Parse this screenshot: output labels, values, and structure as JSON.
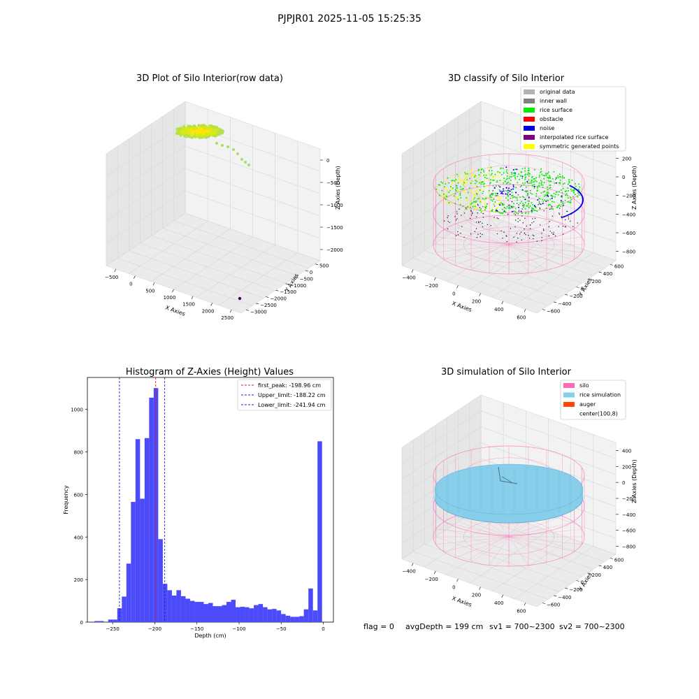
{
  "figure": {
    "title": "PJPJR01 2025-11-05 15:25:35",
    "footer": {
      "flag": "flag = 0",
      "avg_depth": "avgDepth = 199 cm",
      "sv1": "sv1 = 700~2300",
      "sv2": "sv2 = 700~2300"
    }
  },
  "colors": {
    "pane": "#f2f2f2",
    "pane_side": "#e6e6e6",
    "pane_grid": "#d6d6d6",
    "hist_bar": "#4b4bfa",
    "first_peak_line": "#e31a1c",
    "limit_line": "#1f1fd0",
    "silo_wire": "#ff69b4",
    "rice_sim": "#87ceeb",
    "auger": "#ff4500",
    "rice_surface": "#00ee00",
    "noise": "#0000e6",
    "symmetric": "#ffff00",
    "inner_wall": "#808080"
  },
  "chart_data": [
    {
      "type": "scatter",
      "title": "3D Plot of Silo Interior(row data)",
      "xlabel": "X Axies",
      "ylabel": "Y Axies",
      "zlabel": "Z Axies (Depth)",
      "x_ticks": [
        "−500",
        "0",
        "500",
        "1000",
        "1500",
        "2000",
        "2500"
      ],
      "y_ticks": [
        "500",
        "0",
        "−500",
        "−1000",
        "−1500",
        "−2000",
        "−2500",
        "−3000"
      ],
      "z_ticks": [
        "0",
        "−500",
        "−1000",
        "−1500",
        "−2000"
      ],
      "description_points": "dense ring of yellow-green points near z=0, trailing points, single dark outlier near (2500,-2900,-2200)"
    },
    {
      "type": "scatter",
      "title": "3D classify of Silo Interior",
      "xlabel": "X Axies",
      "ylabel": "Y Axies",
      "zlabel": "Z Axies (Depth)",
      "x_ticks": [
        "−400",
        "−200",
        "0",
        "200",
        "400",
        "600"
      ],
      "y_ticks": [
        "600",
        "400",
        "200",
        "0",
        "−200",
        "−400",
        "−600"
      ],
      "z_ticks": [
        "200",
        "0",
        "−200",
        "−400",
        "−600",
        "−800"
      ],
      "legend": [
        {
          "label": "original data",
          "color": "#b3b3b3"
        },
        {
          "label": "inner wall",
          "color": "#808080"
        },
        {
          "label": "rice surface",
          "color": "#00ee00"
        },
        {
          "label": "obstacle",
          "color": "#ff0000"
        },
        {
          "label": "noise",
          "color": "#0000e6"
        },
        {
          "label": "interpolated rice surface",
          "color": "#800080"
        },
        {
          "label": "symmetric generated points",
          "color": "#ffff00"
        }
      ]
    },
    {
      "type": "bar",
      "title": "Histogram of Z-Axies (Height) Values",
      "xlabel": "Depth (cm)",
      "ylabel": "Frequency",
      "xlim": [
        -280,
        12
      ],
      "ylim": [
        0,
        1150
      ],
      "x_ticks": [
        -250,
        -200,
        -150,
        -100,
        -50,
        0
      ],
      "y_ticks": [
        0,
        200,
        400,
        600,
        800,
        1000
      ],
      "bin_width": 5.4,
      "bin_edges_start": -271.5,
      "counts": [
        5,
        5,
        0,
        12,
        12,
        65,
        120,
        275,
        565,
        860,
        580,
        865,
        1055,
        1100,
        390,
        180,
        150,
        125,
        150,
        122,
        110,
        100,
        95,
        95,
        85,
        90,
        75,
        75,
        80,
        95,
        105,
        70,
        72,
        70,
        65,
        80,
        85,
        70,
        60,
        62,
        55,
        38,
        30,
        25,
        25,
        28,
        60,
        158,
        55,
        850
      ],
      "vlines": [
        {
          "label": "first_peak: -198.96 cm",
          "x": -198.96,
          "style": "first_peak"
        },
        {
          "label": "Upper_limit: -188.22 cm",
          "x": -188.22,
          "style": "limit"
        },
        {
          "label": "Lower_limit: -241.94 cm",
          "x": -241.94,
          "style": "limit"
        }
      ]
    },
    {
      "type": "scatter",
      "title": "3D simulation of Silo Interior",
      "xlabel": "X Axies",
      "ylabel": "Y Axies",
      "zlabel": "Z Axies (Depth)",
      "x_ticks": [
        "−400",
        "−200",
        "0",
        "200",
        "400",
        "600"
      ],
      "y_ticks": [
        "600",
        "400",
        "200",
        "0",
        "−200",
        "−400",
        "−600"
      ],
      "z_ticks": [
        "400",
        "200",
        "0",
        "−200",
        "−400",
        "−600",
        "−800"
      ],
      "legend": [
        {
          "label": "silo",
          "color": "#ff69b4"
        },
        {
          "label": "rice simulation",
          "color": "#87ceeb"
        },
        {
          "label": "auger",
          "color": "#ff4500"
        },
        {
          "label": "center(100,8)",
          "color": ""
        }
      ]
    }
  ]
}
